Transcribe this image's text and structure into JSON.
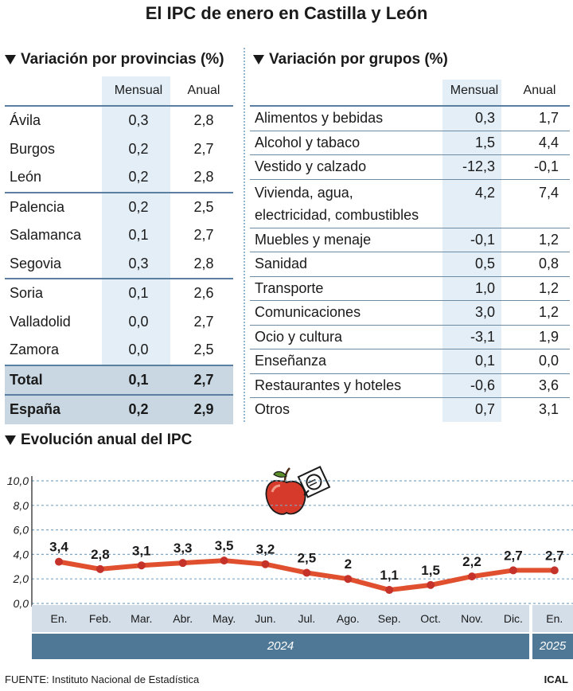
{
  "title": "El IPC de enero en Castilla y León",
  "provincias": {
    "heading": "Variación por provincias (%)",
    "col_mensual": "Mensual",
    "col_anual": "Anual",
    "rows": [
      {
        "name": "Ávila",
        "mensual": "0,3",
        "anual": "2,8"
      },
      {
        "name": "Burgos",
        "mensual": "0,2",
        "anual": "2,7"
      },
      {
        "name": "León",
        "mensual": "0,2",
        "anual": "2,8"
      },
      {
        "name": "Palencia",
        "mensual": "0,2",
        "anual": "2,5"
      },
      {
        "name": "Salamanca",
        "mensual": "0,1",
        "anual": "2,7"
      },
      {
        "name": "Segovia",
        "mensual": "0,3",
        "anual": "2,8"
      },
      {
        "name": "Soria",
        "mensual": "0,1",
        "anual": "2,6"
      },
      {
        "name": "Valladolid",
        "mensual": "0,0",
        "anual": "2,7"
      },
      {
        "name": "Zamora",
        "mensual": "0,0",
        "anual": "2,5"
      }
    ],
    "total": {
      "name": "Total",
      "mensual": "0,1",
      "anual": "2,7"
    },
    "espana": {
      "name": "España",
      "mensual": "0,2",
      "anual": "2,9"
    }
  },
  "grupos": {
    "heading": "Variación por grupos (%)",
    "col_mensual": "Mensual",
    "col_anual": "Anual",
    "rows": [
      {
        "name": "Alimentos y bebidas",
        "mensual": "0,3",
        "anual": "1,7"
      },
      {
        "name": "Alcohol y tabaco",
        "mensual": "1,5",
        "anual": "4,4"
      },
      {
        "name": "Vestido y calzado",
        "mensual": "-12,3",
        "anual": "-0,1"
      },
      {
        "name": "Vivienda, agua,",
        "name2": "electricidad, combustibles",
        "mensual": "4,2",
        "anual": "7,4"
      },
      {
        "name": "Muebles y menaje",
        "mensual": "-0,1",
        "anual": "1,2"
      },
      {
        "name": "Sanidad",
        "mensual": "0,5",
        "anual": "0,8"
      },
      {
        "name": "Transporte",
        "mensual": "1,0",
        "anual": "1,2"
      },
      {
        "name": "Comunicaciones",
        "mensual": "3,0",
        "anual": "1,2"
      },
      {
        "name": "Ocio y cultura",
        "mensual": "-3,1",
        "anual": "1,9"
      },
      {
        "name": "Enseñanza",
        "mensual": "0,1",
        "anual": "0,0"
      },
      {
        "name": "Restaurantes y hoteles",
        "mensual": "-0,6",
        "anual": "3,6"
      },
      {
        "name": "Otros",
        "mensual": "0,7",
        "anual": "3,1"
      }
    ]
  },
  "evolucion": {
    "heading": "Evolución anual del IPC"
  },
  "chart_data": {
    "type": "line",
    "categories": [
      "En.",
      "Feb.",
      "Mar.",
      "Abr.",
      "May.",
      "Jun.",
      "Jul.",
      "Ago.",
      "Sep.",
      "Oct.",
      "Nov.",
      "Dic.",
      "En."
    ],
    "values": [
      3.4,
      2.8,
      3.1,
      3.3,
      3.5,
      3.2,
      2.5,
      2.0,
      1.1,
      1.5,
      2.2,
      2.7,
      2.7
    ],
    "value_labels": [
      "3,4",
      "2,8",
      "3,1",
      "3,3",
      "3,5",
      "3,2",
      "2,5",
      "2",
      "1,1",
      "1,5",
      "2,2",
      "2,7",
      "2,7"
    ],
    "yticks": [
      "10,0",
      "8,0",
      "6,0",
      "4,0",
      "2,0",
      "0,0"
    ],
    "ylim": [
      0,
      10
    ],
    "grid": true,
    "years": [
      "2024",
      "2025"
    ],
    "line_color": "#e0502f",
    "marker_color": "#c5322a"
  },
  "footer": {
    "source": "FUENTE: Instituto Nacional de Estadística",
    "credit": "ICAL"
  }
}
